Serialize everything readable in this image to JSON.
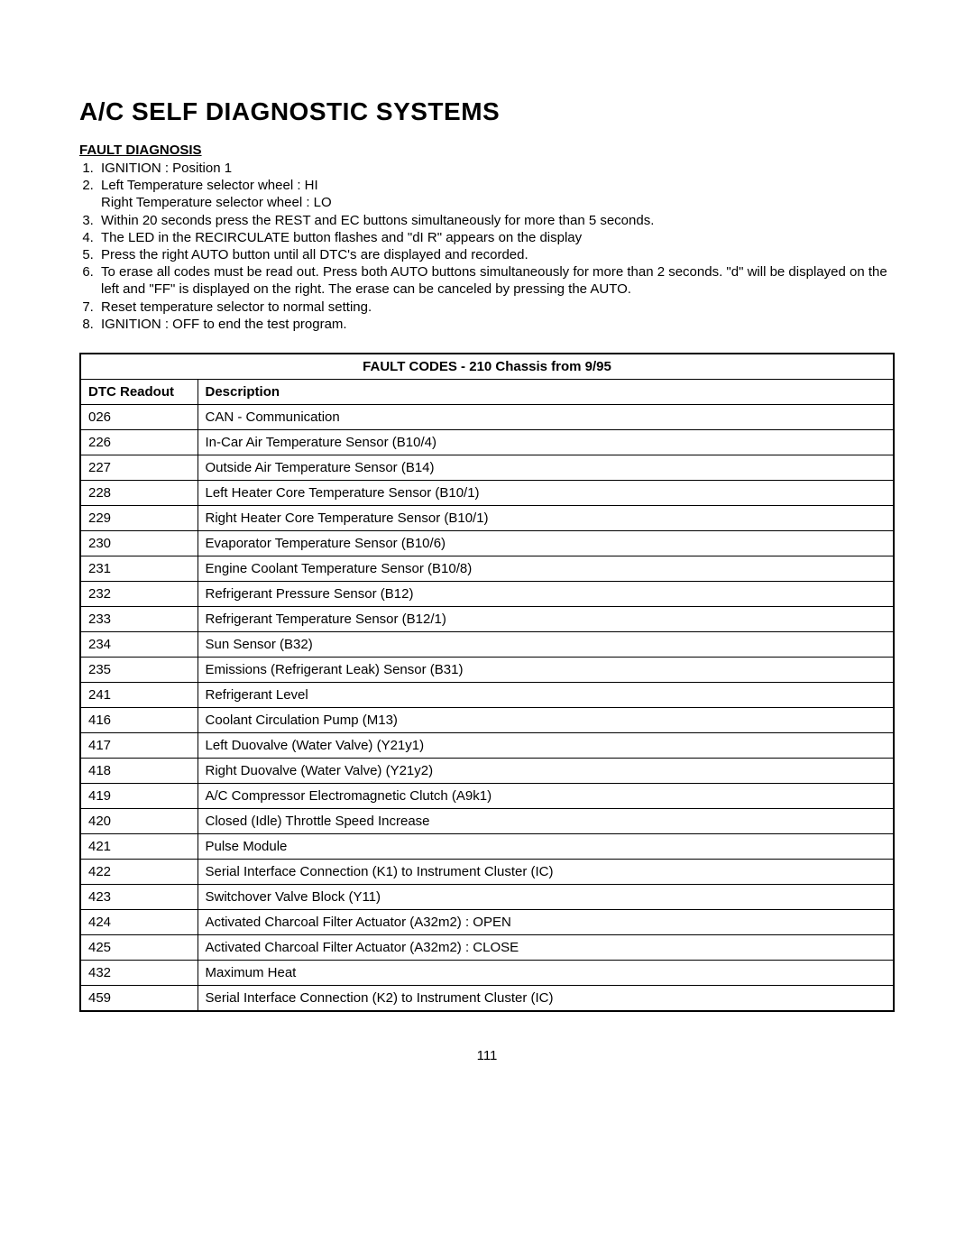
{
  "title": "A/C SELF DIAGNOSTIC SYSTEMS",
  "section_heading": "FAULT DIAGNOSIS",
  "steps": [
    {
      "text": "IGNITION : Position 1"
    },
    {
      "text": "Left Temperature selector wheel : HI",
      "sub": "Right Temperature selector wheel : LO"
    },
    {
      "text": "Within 20 seconds press the REST and EC buttons simultaneously  for more than 5 seconds."
    },
    {
      "text": "The LED in the RECIRCULATE button flashes and \"dI R\" appears on the display"
    },
    {
      "text": "Press the right AUTO button until all DTC's are displayed and recorded."
    },
    {
      "text": "To erase all codes must be read out. Press both AUTO buttons simultaneously for more than 2 seconds. \"d\" will be displayed on the left and \"FF\" is displayed on the right. The erase can be canceled by pressing the AUTO."
    },
    {
      "text": "Reset temperature selector to normal setting."
    },
    {
      "text": "IGNITION : OFF to end the test program."
    }
  ],
  "table": {
    "title": "FAULT CODES - 210 Chassis from 9/95",
    "col_dtc": "DTC Readout",
    "col_desc": "Description",
    "rows": [
      {
        "dtc": "026",
        "desc": "CAN - Communication"
      },
      {
        "dtc": "226",
        "desc": "In-Car Air Temperature Sensor (B10/4)"
      },
      {
        "dtc": "227",
        "desc": "Outside Air Temperature Sensor (B14)"
      },
      {
        "dtc": "228",
        "desc": "Left Heater Core Temperature Sensor (B10/1)"
      },
      {
        "dtc": "229",
        "desc": "Right Heater Core Temperature Sensor (B10/1)"
      },
      {
        "dtc": "230",
        "desc": "Evaporator Temperature Sensor (B10/6)"
      },
      {
        "dtc": "231",
        "desc": "Engine Coolant Temperature Sensor (B10/8)"
      },
      {
        "dtc": "232",
        "desc": "Refrigerant Pressure Sensor (B12)"
      },
      {
        "dtc": "233",
        "desc": "Refrigerant Temperature Sensor (B12/1)"
      },
      {
        "dtc": "234",
        "desc": "Sun Sensor (B32)"
      },
      {
        "dtc": "235",
        "desc": "Emissions (Refrigerant Leak) Sensor (B31)"
      },
      {
        "dtc": "241",
        "desc": "Refrigerant Level"
      },
      {
        "dtc": "416",
        "desc": "Coolant Circulation Pump (M13)"
      },
      {
        "dtc": "417",
        "desc": "Left Duovalve (Water Valve) (Y21y1)"
      },
      {
        "dtc": "418",
        "desc": "Right Duovalve (Water Valve) (Y21y2)"
      },
      {
        "dtc": "419",
        "desc": "A/C Compressor Electromagnetic Clutch (A9k1)"
      },
      {
        "dtc": "420",
        "desc": "Closed (Idle) Throttle Speed Increase"
      },
      {
        "dtc": "421",
        "desc": "Pulse Module"
      },
      {
        "dtc": "422",
        "desc": "Serial Interface Connection (K1) to Instrument Cluster (IC)"
      },
      {
        "dtc": "423",
        "desc": "Switchover Valve Block (Y11)"
      },
      {
        "dtc": "424",
        "desc": "Activated Charcoal Filter Actuator (A32m2) : OPEN"
      },
      {
        "dtc": "425",
        "desc": "Activated Charcoal Filter Actuator (A32m2) : CLOSE"
      },
      {
        "dtc": "432",
        "desc": "Maximum Heat"
      },
      {
        "dtc": "459",
        "desc": "Serial Interface Connection (K2) to Instrument Cluster (IC)"
      }
    ]
  },
  "page_number": "111"
}
